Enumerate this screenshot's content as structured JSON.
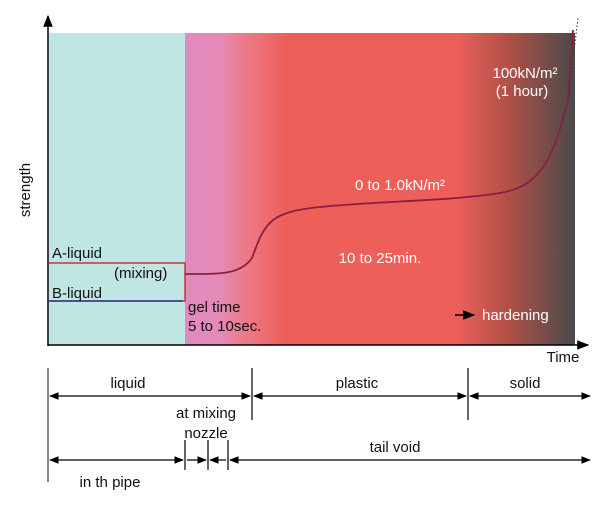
{
  "axis": {
    "y_label": "strength",
    "x_label": "Time"
  },
  "annotations": {
    "a_liquid": "A-liquid",
    "mixing": "(mixing)",
    "b_liquid": "B-liquid",
    "gel_time": "gel time",
    "gel_duration": "5 to 10sec.",
    "plastic_strength": "0 to 1.0kN/m²",
    "plastic_duration": "10 to 25min.",
    "final_strength": "100kN/m²",
    "final_time": "(1 hour)",
    "hardening": "hardening"
  },
  "phases": {
    "liquid": "liquid",
    "plastic": "plastic",
    "solid": "solid"
  },
  "locations": {
    "nozzle_line1": "at mixing",
    "nozzle_line2": "nozzle",
    "tail_void": "tail void",
    "pipe": "in th pipe"
  }
}
